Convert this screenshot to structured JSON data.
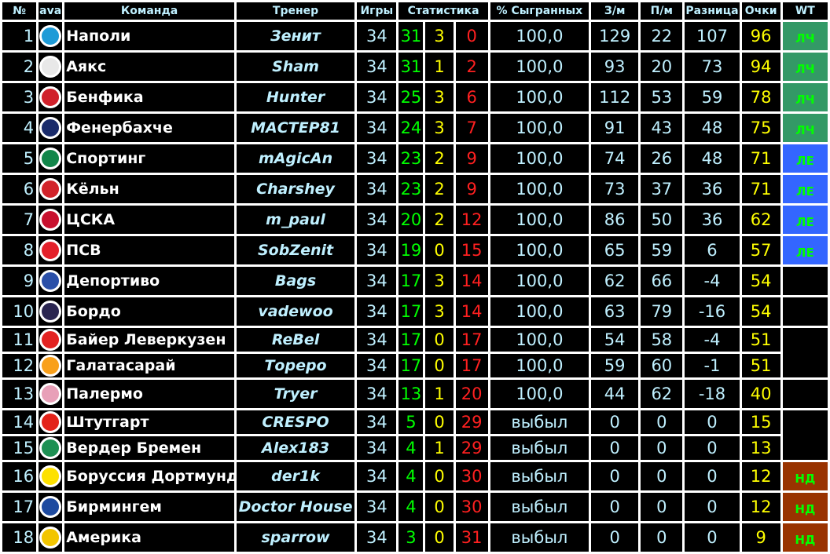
{
  "headers": {
    "num": "№",
    "ava": "ava",
    "team": "Команда",
    "coach": "Тренер",
    "games": "Игры",
    "stats": "Статистика",
    "played_pct": "% Сыгранных",
    "gf": "З/м",
    "ga": "П/м",
    "diff": "Разница",
    "points": "Очки",
    "wt": "WT"
  },
  "wt_colors": {
    "ЛЧ": "#339966",
    "ЛЕ": "#3366ff",
    "НД": "#993300"
  },
  "rows": [
    {
      "n": "1",
      "team": "Наполи",
      "coach": "Зенит",
      "g": "34",
      "w": "31",
      "d": "3",
      "l": "0",
      "pct": "100,0",
      "gf": "129",
      "ga": "22",
      "diff": "107",
      "pts": "96",
      "crest": "#1e9bd7"
    },
    {
      "n": "2",
      "team": "Аякс",
      "coach": "Sham",
      "g": "34",
      "w": "31",
      "d": "1",
      "l": "2",
      "pct": "100,0",
      "gf": "93",
      "ga": "20",
      "diff": "73",
      "pts": "94",
      "crest": "#e8e8e8"
    },
    {
      "n": "3",
      "team": "Бенфика",
      "coach": "Hunter",
      "g": "34",
      "w": "25",
      "d": "3",
      "l": "6",
      "pct": "100,0",
      "gf": "112",
      "ga": "53",
      "diff": "59",
      "pts": "78",
      "crest": "#d0202a"
    },
    {
      "n": "4",
      "team": "Фенербахче",
      "coach": "МАСТЕР81",
      "g": "34",
      "w": "24",
      "d": "3",
      "l": "7",
      "pct": "100,0",
      "gf": "91",
      "ga": "43",
      "diff": "48",
      "pts": "75",
      "crest": "#1a2b6b"
    },
    {
      "n": "5",
      "team": "Спортинг",
      "coach": "mAgicAn",
      "g": "34",
      "w": "23",
      "d": "2",
      "l": "9",
      "pct": "100,0",
      "gf": "74",
      "ga": "26",
      "diff": "48",
      "pts": "71",
      "crest": "#11864a"
    },
    {
      "n": "6",
      "team": "Кёльн",
      "coach": "Charshey",
      "g": "34",
      "w": "23",
      "d": "2",
      "l": "9",
      "pct": "100,0",
      "gf": "73",
      "ga": "37",
      "diff": "36",
      "pts": "71",
      "crest": "#d2232a"
    },
    {
      "n": "7",
      "team": "ЦСКА",
      "coach": "m_paul",
      "g": "34",
      "w": "20",
      "d": "2",
      "l": "12",
      "pct": "100,0",
      "gf": "86",
      "ga": "50",
      "diff": "36",
      "pts": "62",
      "crest": "#c8102e"
    },
    {
      "n": "8",
      "team": "ПСВ",
      "coach": "SobZenit",
      "g": "34",
      "w": "19",
      "d": "0",
      "l": "15",
      "pct": "100,0",
      "gf": "65",
      "ga": "59",
      "diff": "6",
      "pts": "57",
      "crest": "#e4202a"
    },
    {
      "n": "9",
      "team": "Депортиво",
      "coach": "Bags",
      "g": "34",
      "w": "17",
      "d": "3",
      "l": "14",
      "pct": "100,0",
      "gf": "62",
      "ga": "66",
      "diff": "-4",
      "pts": "54",
      "crest": "#2a4fa8"
    },
    {
      "n": "10",
      "team": "Бордо",
      "coach": "vadewoo",
      "g": "34",
      "w": "17",
      "d": "3",
      "l": "14",
      "pct": "100,0",
      "gf": "63",
      "ga": "79",
      "diff": "-16",
      "pts": "54",
      "crest": "#2a2550"
    },
    {
      "n": "11",
      "team": "Байер Леверкузен",
      "coach": "ReBel",
      "g": "34",
      "w": "17",
      "d": "0",
      "l": "17",
      "pct": "100,0",
      "gf": "54",
      "ga": "58",
      "diff": "-4",
      "pts": "51",
      "crest": "#e32221"
    },
    {
      "n": "12",
      "team": "Галатасарай",
      "coach": "Тореро",
      "g": "34",
      "w": "17",
      "d": "0",
      "l": "17",
      "pct": "100,0",
      "gf": "59",
      "ga": "60",
      "diff": "-1",
      "pts": "51",
      "crest": "#f9a01b"
    },
    {
      "n": "13",
      "team": "Палермо",
      "coach": "Tryer",
      "g": "34",
      "w": "13",
      "d": "1",
      "l": "20",
      "pct": "100,0",
      "gf": "44",
      "ga": "62",
      "diff": "-18",
      "pts": "40",
      "crest": "#e8a0b8"
    },
    {
      "n": "14",
      "team": "Штутгарт",
      "coach": "CRESPO",
      "g": "34",
      "w": "5",
      "d": "0",
      "l": "29",
      "pct": "выбыл",
      "gf": "0",
      "ga": "0",
      "diff": "0",
      "pts": "15",
      "crest": "#e32219"
    },
    {
      "n": "15",
      "team": "Вердер Бремен",
      "coach": "Alex183",
      "g": "34",
      "w": "4",
      "d": "1",
      "l": "29",
      "pct": "выбыл",
      "gf": "0",
      "ga": "0",
      "diff": "0",
      "pts": "13",
      "crest": "#1d9053"
    },
    {
      "n": "16",
      "team": "Боруссия Дортмунд",
      "coach": "der1k",
      "g": "34",
      "w": "4",
      "d": "0",
      "l": "30",
      "pct": "выбыл",
      "gf": "0",
      "ga": "0",
      "diff": "0",
      "pts": "12",
      "crest": "#fde100"
    },
    {
      "n": "17",
      "team": "Бирмингем",
      "coach": "Doctor House",
      "g": "34",
      "w": "4",
      "d": "0",
      "l": "30",
      "pct": "выбыл",
      "gf": "0",
      "ga": "0",
      "diff": "0",
      "pts": "12",
      "crest": "#1d4aa0"
    },
    {
      "n": "18",
      "team": "Америка",
      "coach": "sparrow",
      "g": "34",
      "w": "3",
      "d": "0",
      "l": "31",
      "pct": "выбыл",
      "gf": "0",
      "ga": "0",
      "diff": "0",
      "pts": "9",
      "crest": "#f2c500"
    }
  ],
  "wt": [
    {
      "label": "ЛЧ",
      "span": 1
    },
    {
      "label": "ЛЧ",
      "span": 1
    },
    {
      "label": "ЛЧ",
      "span": 1
    },
    {
      "label": "ЛЧ",
      "span": 1
    },
    {
      "label": "ЛЕ",
      "span": 1
    },
    {
      "label": "ЛЕ",
      "span": 1
    },
    {
      "label": "ЛЕ",
      "span": 1
    },
    {
      "label": "ЛЕ",
      "span": 1
    },
    {
      "label": "",
      "span": 1
    },
    {
      "label": "",
      "span": 1
    },
    {
      "label": "",
      "span": 2
    },
    {
      "label": "",
      "span": 1
    },
    {
      "label": "",
      "span": 2
    },
    {
      "label": "НД",
      "span": 1
    },
    {
      "label": "НД",
      "span": 1
    },
    {
      "label": "НД",
      "span": 1
    }
  ]
}
